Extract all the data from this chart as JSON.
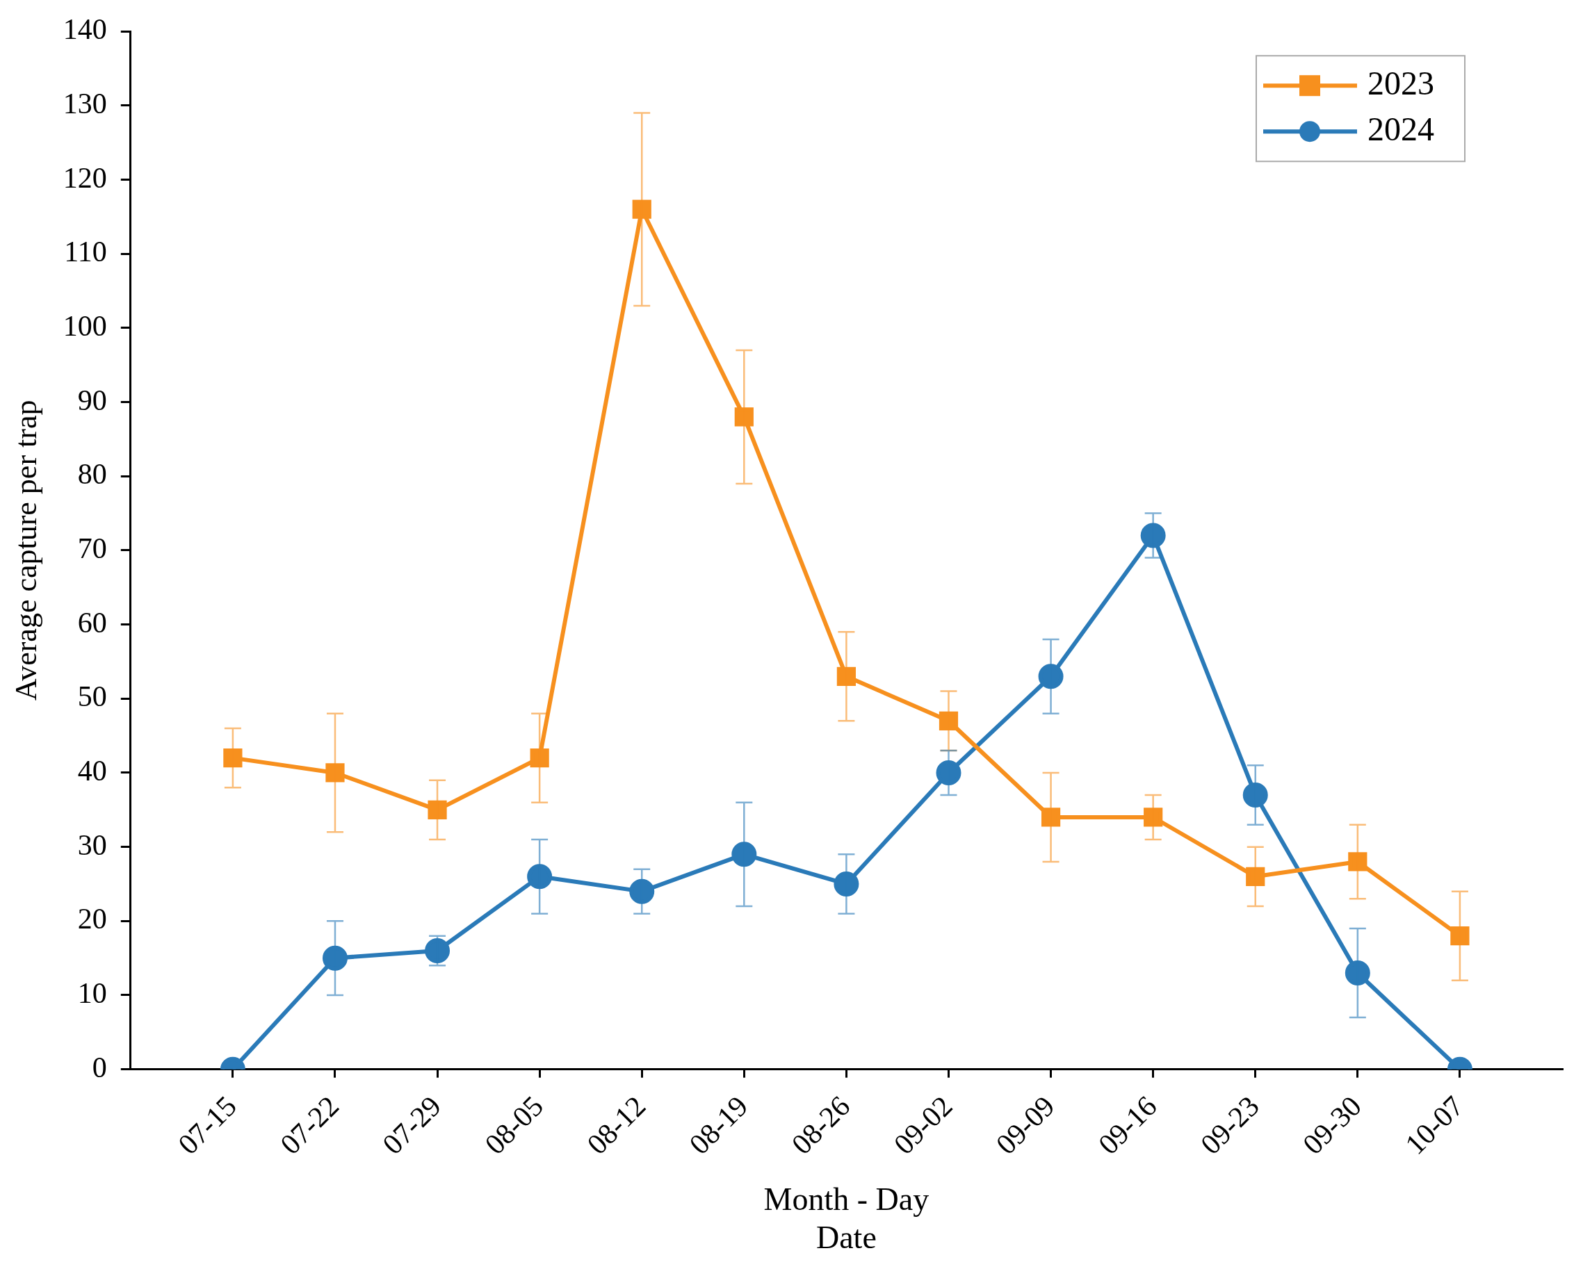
{
  "chart_data": {
    "type": "line",
    "xlabel": "Month - Day\nDate",
    "ylabel": "Average capture per trap",
    "categories": [
      "07-15",
      "07-22",
      "07-29",
      "08-05",
      "08-12",
      "08-19",
      "08-26",
      "09-02",
      "09-09",
      "09-16",
      "09-23",
      "09-30",
      "10-07"
    ],
    "ylim": [
      0,
      140
    ],
    "yticks": [
      0,
      10,
      20,
      30,
      40,
      50,
      60,
      70,
      80,
      90,
      100,
      110,
      120,
      130,
      140
    ],
    "grid": false,
    "legend": "top right",
    "line_style": "solid",
    "series": [
      {
        "name": "2023",
        "color": "#f7901e",
        "marker": "square",
        "values": [
          42,
          40,
          35,
          42,
          116,
          88,
          53,
          47,
          34,
          34,
          26,
          28,
          18
        ],
        "errors": [
          4,
          8,
          4,
          6,
          13,
          9,
          6,
          4,
          6,
          3,
          4,
          5,
          6
        ]
      },
      {
        "name": "2024",
        "color": "#2a7ab8",
        "marker": "circle",
        "values": [
          0,
          15,
          16,
          26,
          24,
          29,
          25,
          40,
          53,
          72,
          37,
          13,
          0
        ],
        "errors": [
          null,
          5,
          2,
          5,
          3,
          7,
          4,
          3,
          5,
          3,
          4,
          6,
          null
        ]
      }
    ]
  }
}
